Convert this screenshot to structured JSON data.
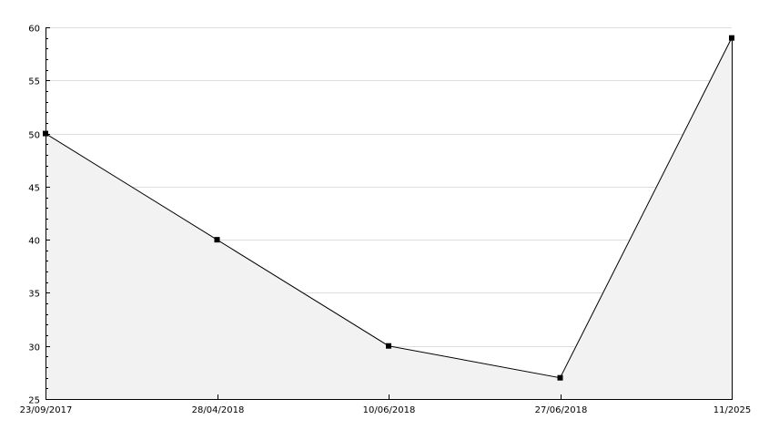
{
  "chart_data": {
    "type": "area",
    "title": "",
    "xlabel": "",
    "ylabel": "",
    "categories": [
      "23/09/2017",
      "28/04/2018",
      "10/06/2018",
      "27/06/2018",
      "11/2025"
    ],
    "values": [
      50,
      40,
      30,
      27,
      59
    ],
    "ylim": [
      25,
      60
    ],
    "y_ticks": [
      25,
      30,
      35,
      40,
      45,
      50,
      55,
      60
    ],
    "y_tick_labels": [
      "25",
      "30",
      "35",
      "40",
      "45",
      "50",
      "55",
      "60"
    ],
    "grid": "horizontal",
    "legend": "none",
    "colors": {
      "line": "#000000",
      "fill": "#f2f2f2",
      "grid": "#dddddd",
      "axis": "#000000"
    }
  }
}
